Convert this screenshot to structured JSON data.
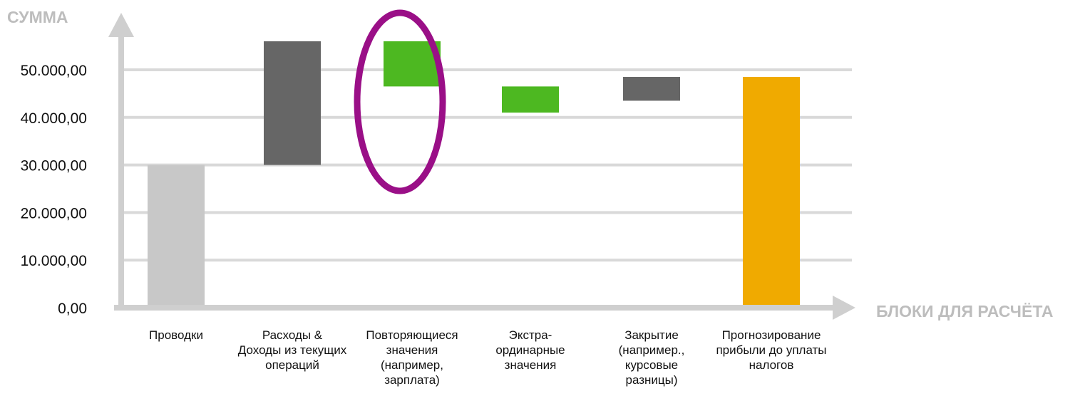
{
  "chart_data": {
    "type": "bar",
    "subtype": "waterfall",
    "ylabel": "СУММА",
    "xlabel": "БЛОКИ ДЛЯ РАСЧЁТА",
    "ylim": [
      0,
      55000
    ],
    "yticks": [
      {
        "value": 0,
        "label": "0,00"
      },
      {
        "value": 10000,
        "label": "10.000,00"
      },
      {
        "value": 20000,
        "label": "20.000,00"
      },
      {
        "value": 30000,
        "label": "30.000,00"
      },
      {
        "value": 40000,
        "label": "40.000,00"
      },
      {
        "value": 50000,
        "label": "50.000,00"
      }
    ],
    "grid": true,
    "categories": [
      {
        "lines": [
          "Проводки"
        ]
      },
      {
        "lines": [
          "Расходы &",
          "Доходы из текущих",
          "операций"
        ]
      },
      {
        "lines": [
          "Повторяющиеся",
          "значения",
          "(например,",
          "зарплата)"
        ]
      },
      {
        "lines": [
          "Экстра-",
          "ординарные",
          "значения"
        ]
      },
      {
        "lines": [
          "Закрытие",
          "(например.,",
          "курсовые",
          "разницы)"
        ]
      },
      {
        "lines": [
          "Прогнозирование",
          "прибыли до уплаты",
          "налогов"
        ]
      }
    ],
    "bars": [
      {
        "low": 0,
        "high": 30000,
        "color": "#c8c8c8"
      },
      {
        "low": 30000,
        "high": 56000,
        "color": "#666666"
      },
      {
        "low": 46500,
        "high": 56000,
        "color": "#4db821"
      },
      {
        "low": 41000,
        "high": 46500,
        "color": "#4db821"
      },
      {
        "low": 43500,
        "high": 48500,
        "color": "#666666"
      },
      {
        "low": 0,
        "high": 48500,
        "color": "#f0aa00"
      }
    ],
    "highlight": {
      "category_index": 2,
      "color": "#9a0f87"
    }
  }
}
